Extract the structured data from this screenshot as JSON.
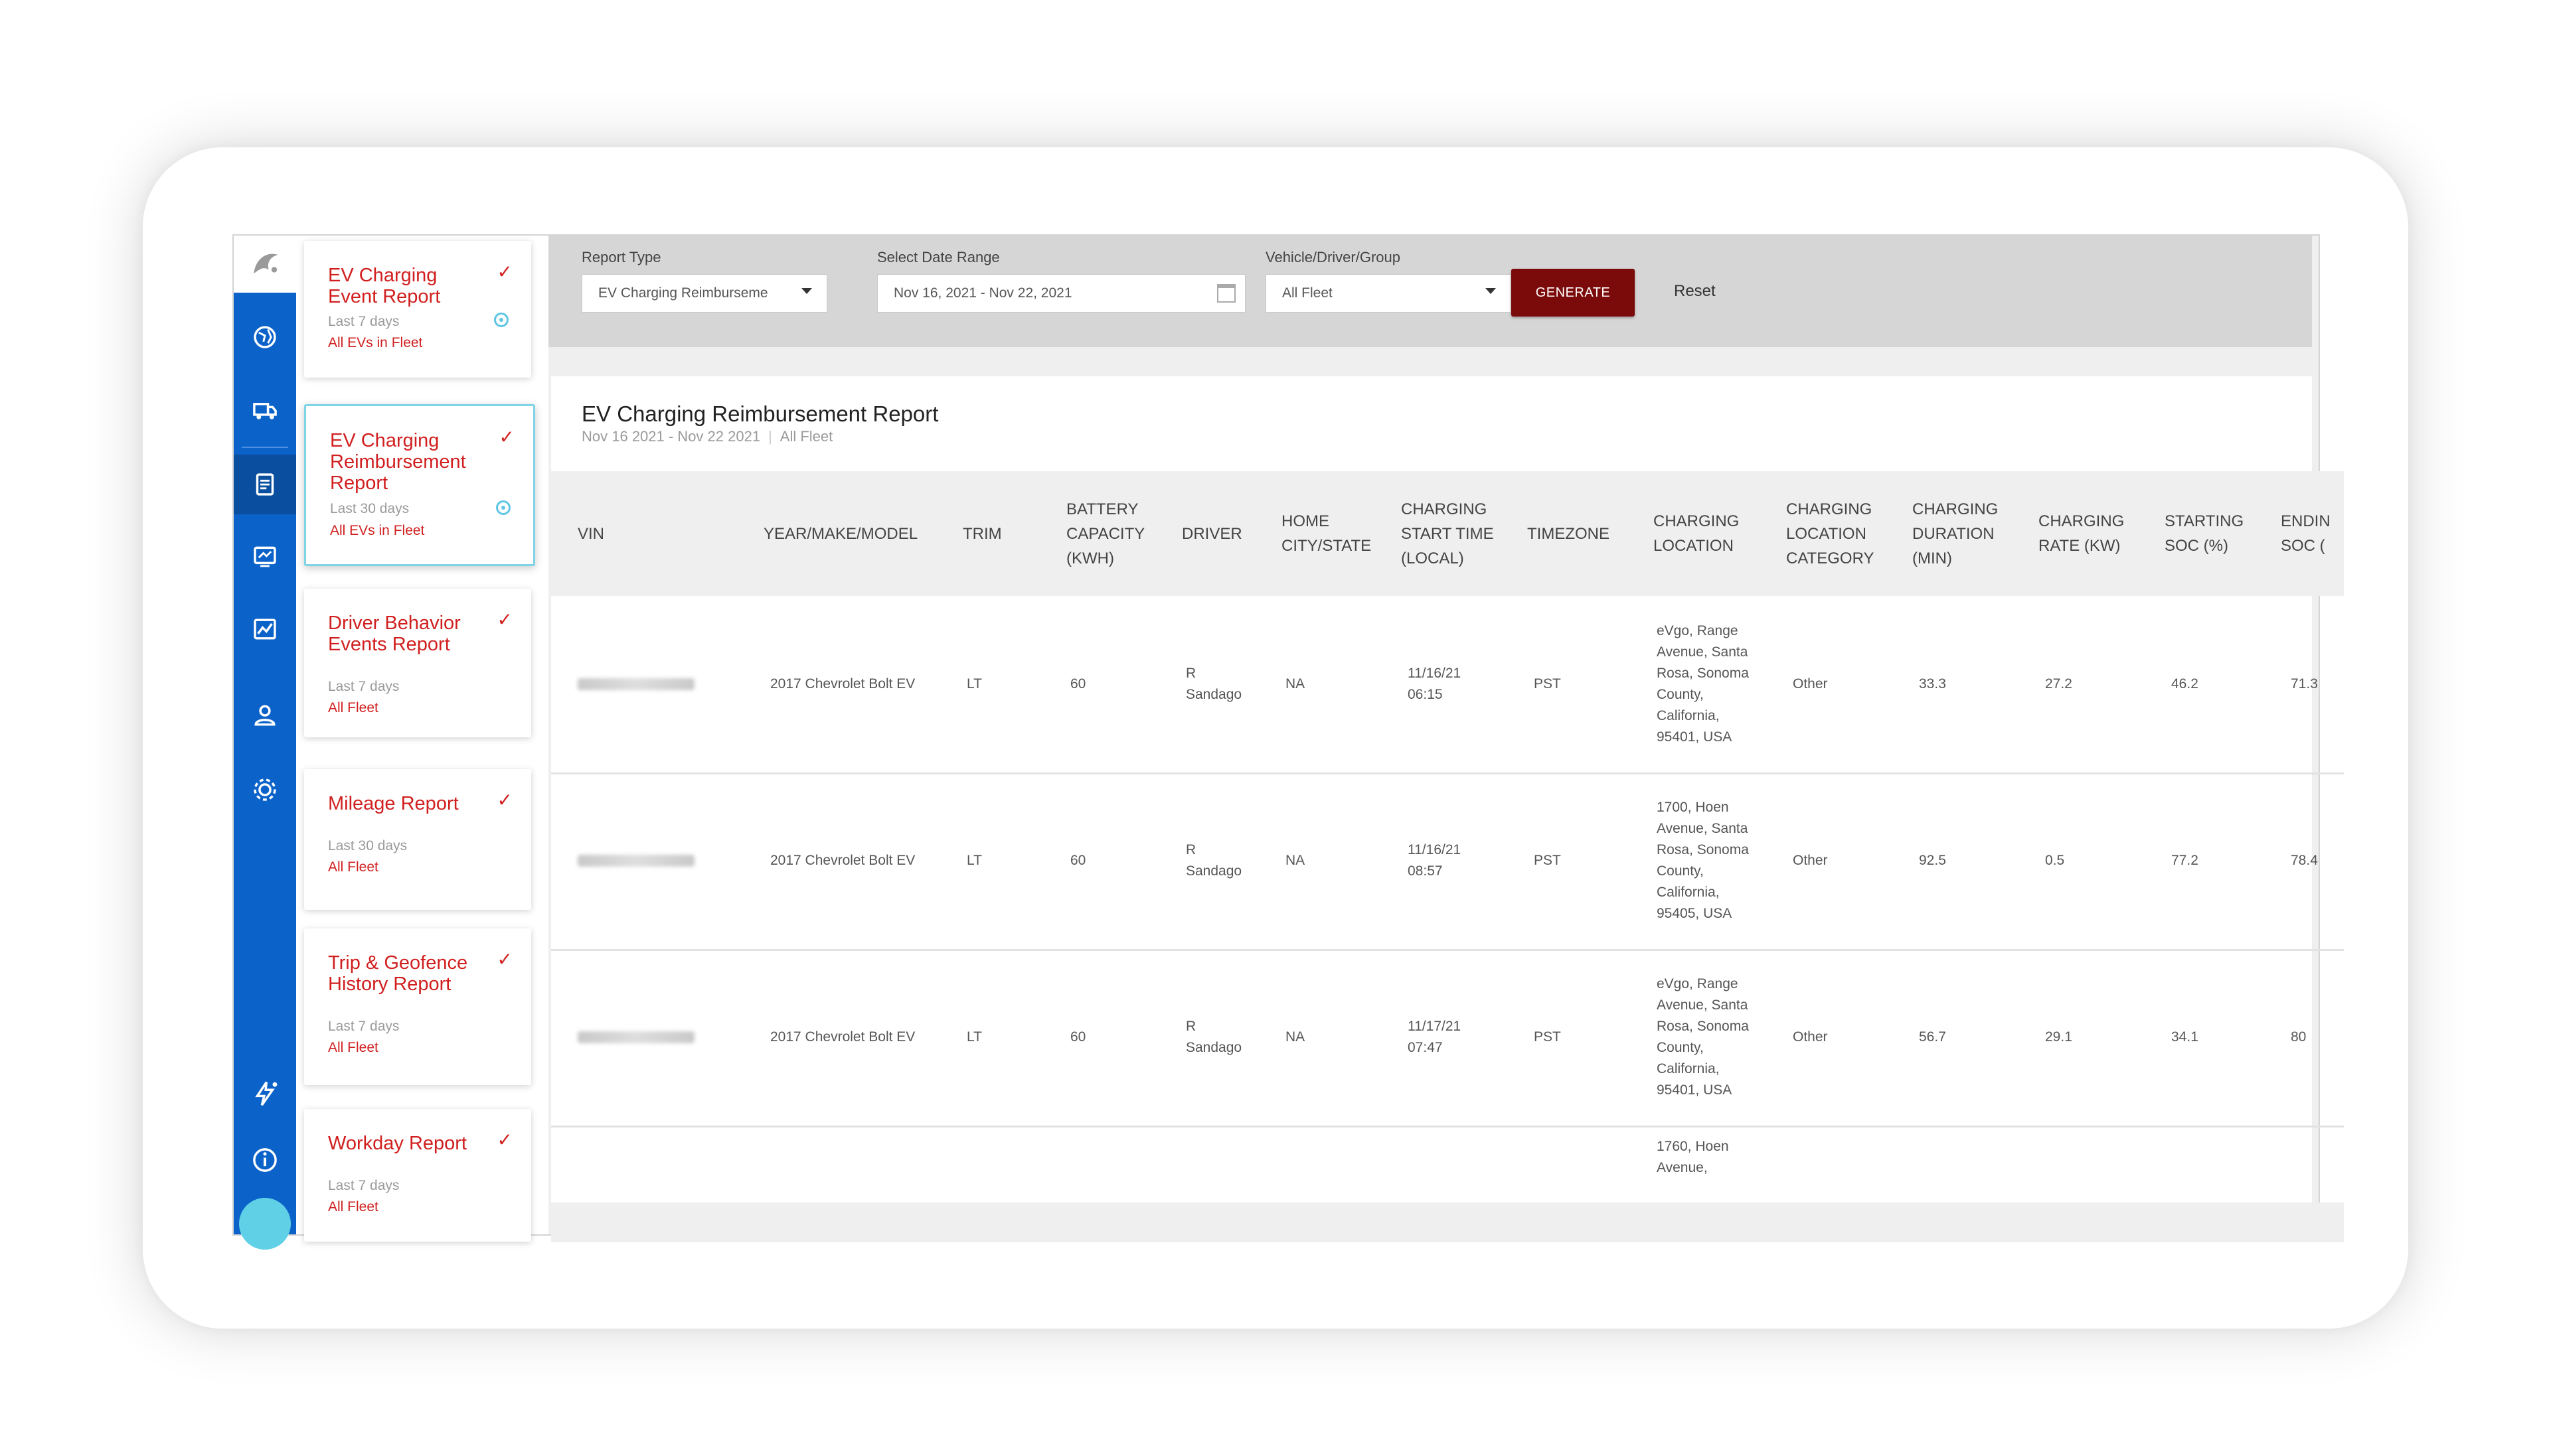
{
  "sidebar_icons": [
    "globe-icon",
    "truck-icon",
    "report-icon",
    "dashboard-icon",
    "chart-icon",
    "users-icon",
    "gear-icon",
    "charging-icon",
    "info-icon"
  ],
  "reports": [
    {
      "title": "EV Charging Event Report",
      "period": "Last 7 days",
      "scope": "All EVs in Fleet",
      "check": "✓",
      "scheduled": true
    },
    {
      "title": "EV Charging Reimbursement Report",
      "period": "Last 30 days",
      "scope": "All EVs in Fleet",
      "check": "✓",
      "scheduled": true
    },
    {
      "title": "Driver Behavior Events Report",
      "period": "Last 7 days",
      "scope": "All Fleet",
      "check": "✓",
      "scheduled": false
    },
    {
      "title": "Mileage Report",
      "period": "Last 30 days",
      "scope": "All Fleet",
      "check": "✓",
      "scheduled": false
    },
    {
      "title": "Trip & Geofence History Report",
      "period": "Last 7 days",
      "scope": "All Fleet",
      "check": "✓",
      "scheduled": false
    },
    {
      "title": "Workday Report",
      "period": "Last 7 days",
      "scope": "All Fleet",
      "check": "✓",
      "scheduled": false
    }
  ],
  "filters": {
    "report_type_label": "Report Type",
    "report_type_value": "EV Charging Reimburseme",
    "date_range_label": "Select Date Range",
    "date_range_value": "Nov 16, 2021 - Nov 22, 2021",
    "group_label": "Vehicle/Driver/Group",
    "group_value": "All Fleet",
    "generate_label": "GENERATE",
    "reset_label": "Reset"
  },
  "report": {
    "title": "EV Charging Reimbursement Report",
    "dates": "Nov 16 2021 - Nov 22 2021",
    "scope": "All Fleet"
  },
  "table": {
    "columns": [
      "VIN",
      "YEAR/MAKE/MODEL",
      "TRIM",
      "BATTERY CAPACITY (KWH)",
      "DRIVER",
      "HOME CITY/STATE",
      "CHARGING START TIME (LOCAL)",
      "TIMEZONE",
      "CHARGING LOCATION",
      "CHARGING LOCATION CATEGORY",
      "CHARGING DURATION (MIN)",
      "CHARGING RATE (KW)",
      "STARTING SOC (%)",
      "ENDIN SOC ("
    ],
    "rows": [
      {
        "ymm": "2017 Chevrolet Bolt EV",
        "trim": "LT",
        "capacity": "60",
        "driver": "R Sandago",
        "home": "NA",
        "start": "11/16/21 06:15",
        "tz": "PST",
        "location": "eVgo, Range Avenue, Santa Rosa, Sonoma County, California, 95401, USA",
        "category": "Other",
        "duration": "33.3",
        "rate": "27.2",
        "start_soc": "46.2",
        "end_soc": "71.3"
      },
      {
        "ymm": "2017 Chevrolet Bolt EV",
        "trim": "LT",
        "capacity": "60",
        "driver": "R Sandago",
        "home": "NA",
        "start": "11/16/21 08:57",
        "tz": "PST",
        "location": "1700, Hoen Avenue, Santa Rosa, Sonoma County, California, 95405, USA",
        "category": "Other",
        "duration": "92.5",
        "rate": "0.5",
        "start_soc": "77.2",
        "end_soc": "78.4"
      },
      {
        "ymm": "2017 Chevrolet Bolt EV",
        "trim": "LT",
        "capacity": "60",
        "driver": "R Sandago",
        "home": "NA",
        "start": "11/17/21 07:47",
        "tz": "PST",
        "location": "eVgo, Range Avenue, Santa Rosa, Sonoma County, California, 95401, USA",
        "category": "Other",
        "duration": "56.7",
        "rate": "29.1",
        "start_soc": "34.1",
        "end_soc": "80"
      }
    ],
    "partial_location": "1760, Hoen Avenue,"
  }
}
